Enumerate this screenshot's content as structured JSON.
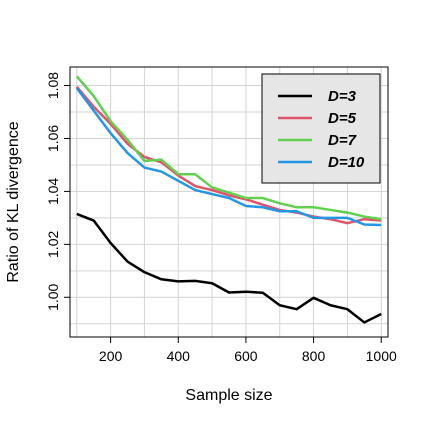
{
  "chart_data": {
    "type": "line",
    "title": "",
    "xlabel": "Sample size",
    "ylabel": "Ratio of KL divergence",
    "xlim": [
      80,
      1020
    ],
    "ylim": [
      0.985,
      1.087
    ],
    "x_ticks": [
      200,
      400,
      600,
      800,
      1000
    ],
    "y_ticks": [
      1.0,
      1.02,
      1.04,
      1.06,
      1.08
    ],
    "y_tick_labels": [
      "1.00",
      "1.02",
      "1.04",
      "1.06",
      "1.08"
    ],
    "grid": true,
    "legend_position": "top-right",
    "x": [
      100,
      150,
      200,
      250,
      300,
      350,
      400,
      450,
      500,
      550,
      600,
      650,
      700,
      750,
      800,
      850,
      900,
      950,
      1000
    ],
    "series": [
      {
        "name": "D=3",
        "color": "#000000",
        "values": [
          1.0315,
          1.029,
          1.0205,
          1.0135,
          1.0095,
          1.0068,
          1.006,
          1.0062,
          1.0053,
          1.0018,
          1.0021,
          1.0017,
          0.997,
          0.9955,
          0.9998,
          0.997,
          0.9955,
          0.9905,
          0.9937
        ]
      },
      {
        "name": "D=5",
        "color": "#DF536B",
        "values": [
          1.0795,
          1.072,
          1.0655,
          1.058,
          1.053,
          1.051,
          1.046,
          1.042,
          1.0405,
          1.0385,
          1.037,
          1.035,
          1.033,
          1.032,
          1.0305,
          1.0295,
          1.028,
          1.0295,
          1.029
        ]
      },
      {
        "name": "D=7",
        "color": "#61D04F",
        "values": [
          1.0835,
          1.076,
          1.0665,
          1.0595,
          1.0515,
          1.052,
          1.0465,
          1.0465,
          1.0415,
          1.0395,
          1.0375,
          1.0375,
          1.0355,
          1.034,
          1.034,
          1.033,
          1.032,
          1.0305,
          1.0295
        ]
      },
      {
        "name": "D=10",
        "color": "#2297E6",
        "values": [
          1.079,
          1.0705,
          1.062,
          1.0545,
          1.049,
          1.0475,
          1.044,
          1.0405,
          1.039,
          1.0375,
          1.0345,
          1.034,
          1.0325,
          1.0325,
          1.03,
          1.03,
          1.03,
          1.0275,
          1.0273
        ]
      }
    ]
  }
}
